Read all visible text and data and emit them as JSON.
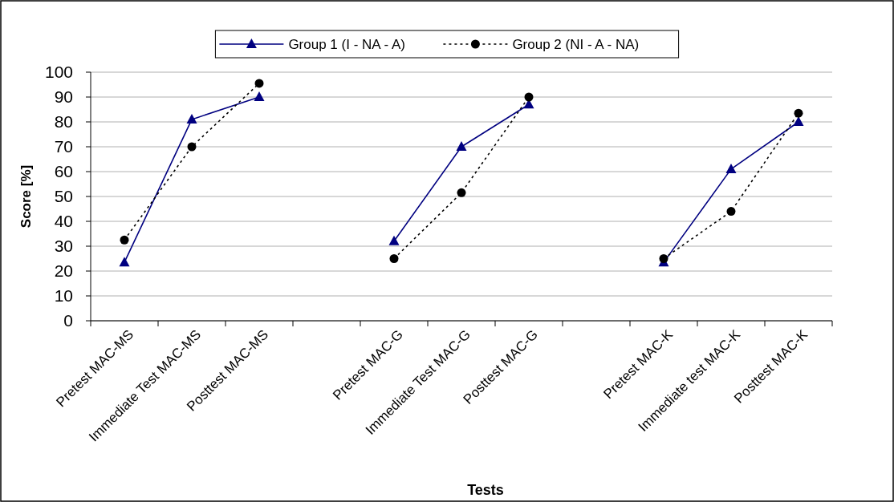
{
  "chart_data": {
    "type": "line",
    "xlabel": "Tests",
    "ylabel": "Score [%]",
    "categories": [
      "Pretest MAC-MS",
      "Immediate Test MAC-MS",
      "Posttest MAC-MS",
      null,
      "Pretest MAC-G",
      "Immediate Test MAC-G",
      "Posttest MAC-G",
      null,
      "Pretest MAC-K",
      "Immediate test MAC-K",
      "Posttest MAC-K"
    ],
    "series": [
      {
        "name": "Group 1 (I - NA - A)",
        "color": "#000080",
        "marker": "triangle",
        "line_style": "solid",
        "values": [
          23.5,
          81,
          90,
          null,
          32,
          70,
          87,
          null,
          23.5,
          61,
          80
        ]
      },
      {
        "name": "Group 2 (NI - A - NA)",
        "color": "#000000",
        "marker": "circle",
        "line_style": "dotted",
        "values": [
          32.5,
          70,
          95.5,
          null,
          25,
          51.5,
          90,
          null,
          25,
          44,
          83.5
        ]
      }
    ],
    "ylim": [
      0,
      100
    ],
    "yticks": [
      0,
      10,
      20,
      30,
      40,
      50,
      60,
      70,
      80,
      90,
      100
    ],
    "grid": "y",
    "legend": "top"
  }
}
